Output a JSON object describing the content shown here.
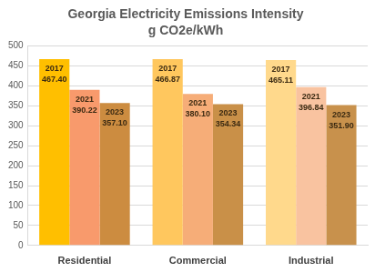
{
  "chart_data": {
    "type": "bar",
    "title": "Georgia Electricity Emissions Intensity",
    "subtitle": "g CO2e/kWh",
    "categories": [
      "Residential",
      "Commercial",
      "Industrial"
    ],
    "series": [
      {
        "name": "2017",
        "values": [
          467.4,
          466.87,
          465.11
        ],
        "value_labels": [
          "467.40",
          "466.87",
          "465.11"
        ],
        "colors": [
          "#ffbf00",
          "#ffc75e",
          "#ffd98c"
        ]
      },
      {
        "name": "2021",
        "values": [
          390.22,
          380.1,
          396.84
        ],
        "value_labels": [
          "390.22",
          "380.10",
          "396.84"
        ],
        "colors": [
          "#f89a6c",
          "#f6ad78",
          "#f9c3a0"
        ]
      },
      {
        "name": "2023",
        "values": [
          357.1,
          354.34,
          351.9
        ],
        "value_labels": [
          "357.10",
          "354.34",
          "351.90"
        ],
        "colors": [
          "#cc8c40",
          "#c99048",
          "#c8914c"
        ]
      }
    ],
    "ylim": [
      0,
      500
    ],
    "yticks": [
      0,
      50,
      100,
      150,
      200,
      250,
      300,
      350,
      400,
      450,
      500
    ],
    "grid": true,
    "data_labels": true
  }
}
